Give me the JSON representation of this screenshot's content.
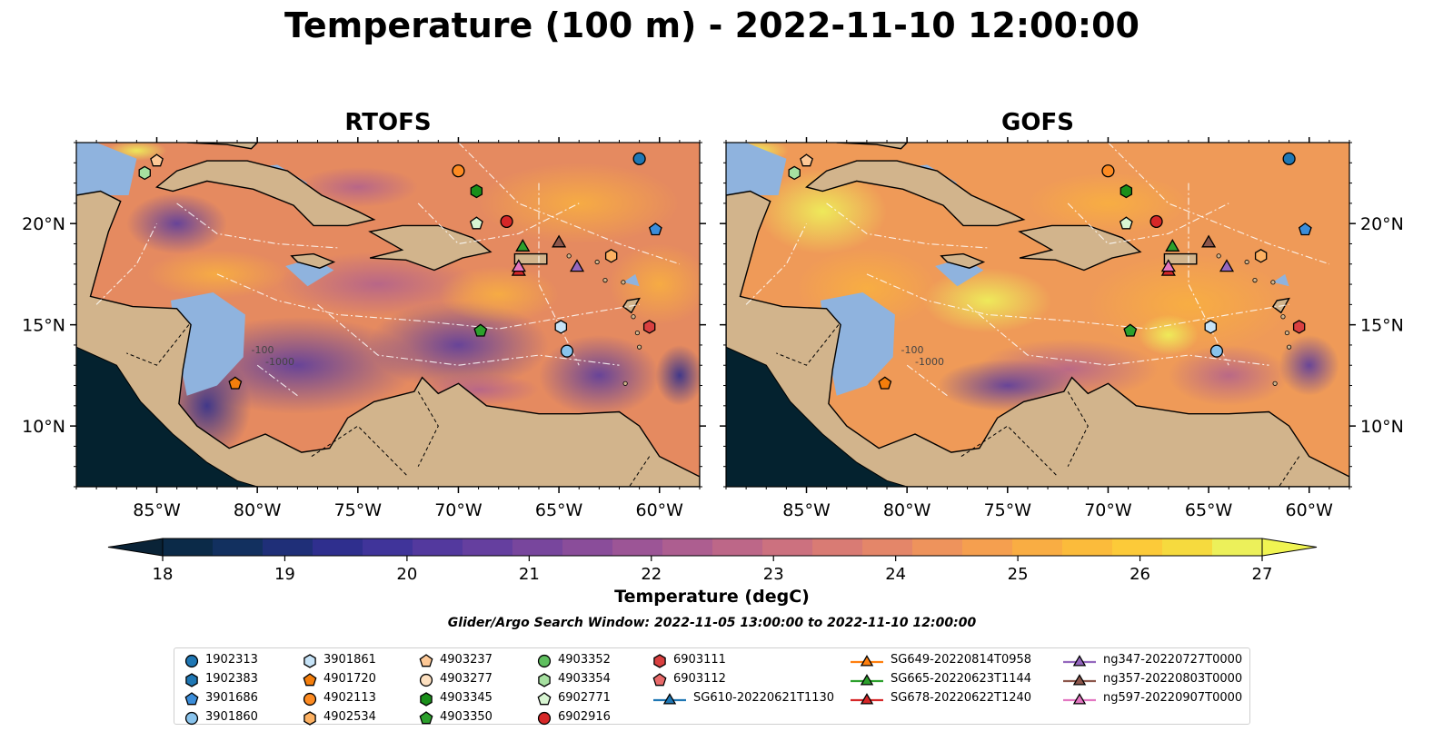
{
  "title": "Temperature (100 m) - 2022-11-10 12:00:00",
  "panels": [
    {
      "name": "RTOFS",
      "palette": "rtofs"
    },
    {
      "name": "GOFS",
      "palette": "gofs"
    }
  ],
  "axes": {
    "lon_range": [
      -89,
      -58
    ],
    "lat_range": [
      7,
      24
    ],
    "lon_ticks": [
      "85°W",
      "80°W",
      "75°W",
      "70°W",
      "65°W",
      "60°W"
    ],
    "lon_tick_values": [
      -85,
      -80,
      -75,
      -70,
      -65,
      -60
    ],
    "lat_ticks": [
      "20°N",
      "15°N",
      "10°N"
    ],
    "lat_tick_values": [
      20,
      15,
      10
    ],
    "contour_labels": [
      "-100",
      "-1000"
    ]
  },
  "colorbar": {
    "label": "Temperature (degC)",
    "min": 18,
    "max": 27,
    "step": 0.5,
    "tick_labels": [
      "18",
      "19",
      "20",
      "21",
      "22",
      "23",
      "24",
      "25",
      "26",
      "27"
    ],
    "tick_values": [
      18,
      19,
      20,
      21,
      22,
      23,
      24,
      25,
      26,
      27
    ],
    "colors": [
      "#0b2a48",
      "#12305f",
      "#1f2f78",
      "#2f2f8e",
      "#40349a",
      "#53399e",
      "#653f9f",
      "#78469d",
      "#8a4d9a",
      "#9c5596",
      "#ad5e90",
      "#bd6788",
      "#cc717f",
      "#d97b74",
      "#e48669",
      "#ee935c",
      "#f59f4f",
      "#f9ad43",
      "#fbbb3b",
      "#fcca39",
      "#f6da3e",
      "#ecf05a"
    ],
    "extend_low_color": "#0a2337",
    "extend_high_color": "#f0f452"
  },
  "search_window": "Glider/Argo Search Window: 2022-11-05 13:00:00 to 2022-11-10 12:00:00",
  "colors": {
    "land": "#d2b48c",
    "shelf": "#8fb3de",
    "pacific": "#04222f",
    "eez": "#ffffff"
  },
  "legend": {
    "items": [
      {
        "id": "1902313",
        "marker": "circle",
        "color": "#1f77b4"
      },
      {
        "id": "1902383",
        "marker": "hexagon",
        "color": "#1f77b4"
      },
      {
        "id": "3901686",
        "marker": "pentagon",
        "color": "#3b8dd9"
      },
      {
        "id": "3901860",
        "marker": "circle",
        "color": "#89c3ec"
      },
      {
        "id": "3901861",
        "marker": "hexagon",
        "color": "#c6e3f7"
      },
      {
        "id": "4901720",
        "marker": "pentagon",
        "color": "#f47e0c"
      },
      {
        "id": "4902113",
        "marker": "circle",
        "color": "#fd8b22"
      },
      {
        "id": "4902534",
        "marker": "hexagon",
        "color": "#fdb162"
      },
      {
        "id": "4903237",
        "marker": "pentagon",
        "color": "#fdc896"
      },
      {
        "id": "4903277",
        "marker": "circle",
        "color": "#fde0c0"
      },
      {
        "id": "4903345",
        "marker": "hexagon",
        "color": "#1a8f1a"
      },
      {
        "id": "4903350",
        "marker": "pentagon",
        "color": "#2ca02c"
      },
      {
        "id": "4903352",
        "marker": "circle",
        "color": "#5fbf5f"
      },
      {
        "id": "4903354",
        "marker": "hexagon",
        "color": "#a6e0a0"
      },
      {
        "id": "6902771",
        "marker": "pentagon",
        "color": "#d8f5d2"
      },
      {
        "id": "6902916",
        "marker": "circle",
        "color": "#d62728"
      },
      {
        "id": "6903111",
        "marker": "hexagon",
        "color": "#d94040"
      },
      {
        "id": "6903112",
        "marker": "pentagon",
        "color": "#e86a6a"
      },
      {
        "id": "SG610-20220621T1130",
        "marker": "triangle",
        "color": "#1f77b4"
      },
      {
        "id": "SG649-20220814T0958",
        "marker": "triangle",
        "color": "#ff7f0e"
      },
      {
        "id": "SG665-20220623T1144",
        "marker": "triangle",
        "color": "#2ca02c"
      },
      {
        "id": "SG678-20220622T1240",
        "marker": "triangle",
        "color": "#d62728"
      },
      {
        "id": "ng347-20220727T0000",
        "marker": "triangle",
        "color": "#9467bd"
      },
      {
        "id": "ng357-20220803T0000",
        "marker": "triangle",
        "color": "#8c564b"
      },
      {
        "id": "ng597-20220907T0000",
        "marker": "triangle",
        "color": "#e377c2"
      }
    ]
  },
  "observations": [
    {
      "id": "4903237",
      "lon": -85.0,
      "lat": 23.1
    },
    {
      "id": "4903354",
      "lon": -85.6,
      "lat": 22.5
    },
    {
      "id": "1902313",
      "lon": -61.0,
      "lat": 23.2
    },
    {
      "id": "4902113",
      "lon": -70.0,
      "lat": 22.6
    },
    {
      "id": "4903345",
      "lon": -69.1,
      "lat": 21.6
    },
    {
      "id": "6902771",
      "lon": -69.1,
      "lat": 20.0
    },
    {
      "id": "6902916",
      "lon": -67.6,
      "lat": 20.1
    },
    {
      "id": "3901686",
      "lon": -60.2,
      "lat": 19.7
    },
    {
      "id": "4902534",
      "lon": -62.4,
      "lat": 18.4
    },
    {
      "id": "SG665-20220623T1144",
      "lon": -66.8,
      "lat": 18.9
    },
    {
      "id": "ng357-20220803T0000",
      "lon": -65.0,
      "lat": 19.1
    },
    {
      "id": "SG678-20220622T1240",
      "lon": -67.0,
      "lat": 17.7
    },
    {
      "id": "ng597-20220907T0000",
      "lon": -67.0,
      "lat": 17.9
    },
    {
      "id": "ng347-20220727T0000",
      "lon": -64.1,
      "lat": 17.9
    },
    {
      "id": "4903350",
      "lon": -68.9,
      "lat": 14.7
    },
    {
      "id": "3901861",
      "lon": -64.9,
      "lat": 14.9
    },
    {
      "id": "6903111",
      "lon": -60.5,
      "lat": 14.9
    },
    {
      "id": "3901860",
      "lon": -64.6,
      "lat": 13.7
    },
    {
      "id": "4901720",
      "lon": -81.1,
      "lat": 12.1
    }
  ]
}
